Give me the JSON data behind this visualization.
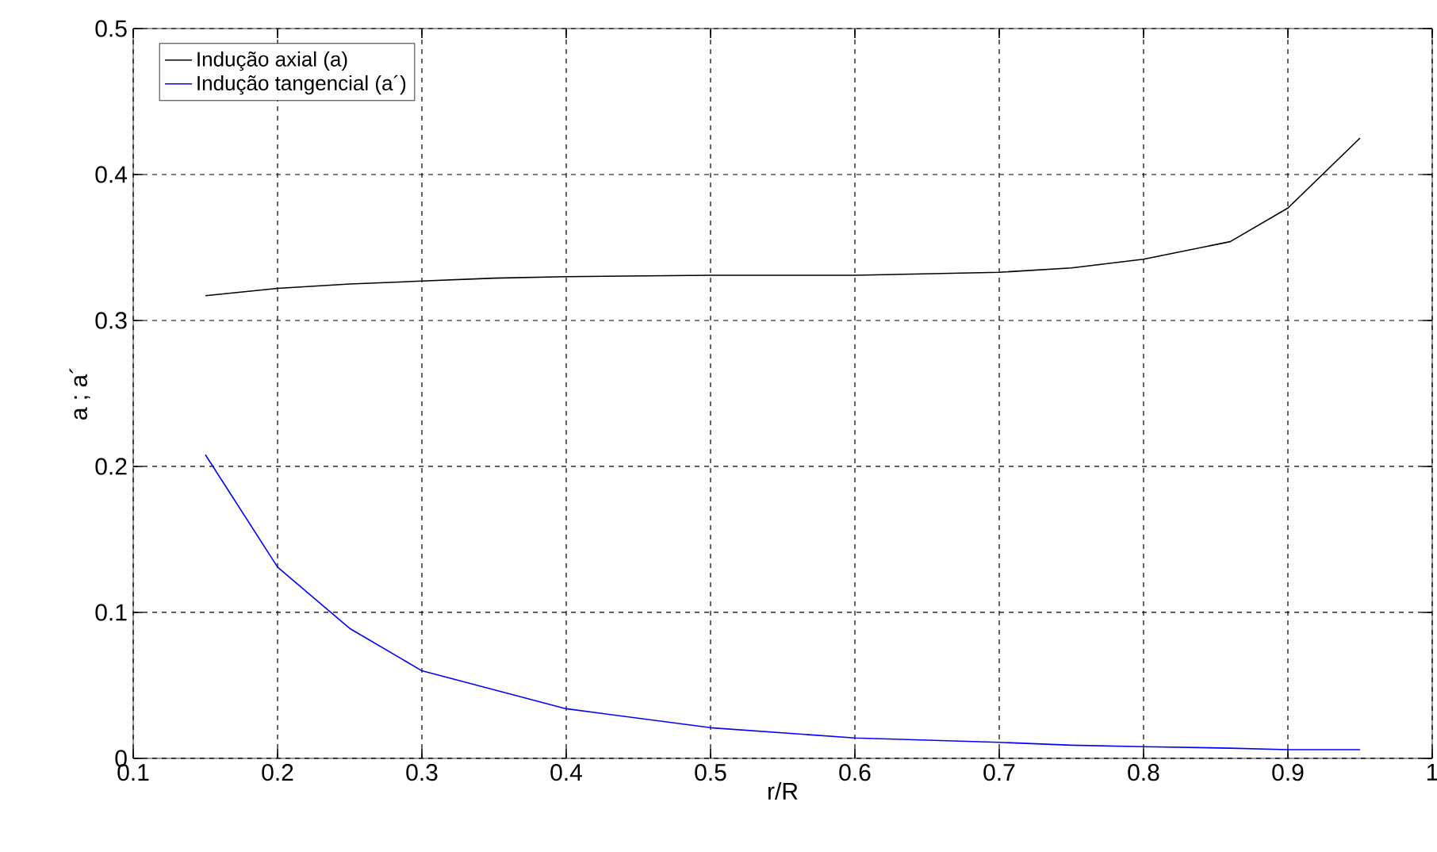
{
  "chart_data": {
    "type": "line",
    "xlabel": "r/R",
    "ylabel": "a ; a´",
    "x": [
      0.15,
      0.2,
      0.25,
      0.3,
      0.35,
      0.4,
      0.5,
      0.6,
      0.7,
      0.75,
      0.8,
      0.86,
      0.9,
      0.95
    ],
    "series": [
      {
        "name": "Indução axial (a)",
        "color": "#000000",
        "values": [
          0.317,
          0.322,
          0.325,
          0.327,
          0.329,
          0.33,
          0.331,
          0.331,
          0.333,
          0.336,
          0.342,
          0.354,
          0.377,
          0.425
        ]
      },
      {
        "name": "Indução tangencial (a´)",
        "color": "#0000ff",
        "values": [
          0.208,
          0.131,
          0.089,
          0.06,
          0.047,
          0.034,
          0.021,
          0.014,
          0.011,
          0.009,
          0.008,
          0.007,
          0.006,
          0.006
        ]
      }
    ],
    "xlim": [
      0.1,
      1
    ],
    "ylim": [
      0,
      0.5
    ],
    "xticks": [
      0.1,
      0.2,
      0.3,
      0.4,
      0.5,
      0.6,
      0.7,
      0.8,
      0.9,
      1
    ],
    "yticks": [
      0,
      0.1,
      0.2,
      0.3,
      0.4,
      0.5
    ],
    "grid": true,
    "legend": "top left",
    "line_style": "solid",
    "marker": "none"
  }
}
